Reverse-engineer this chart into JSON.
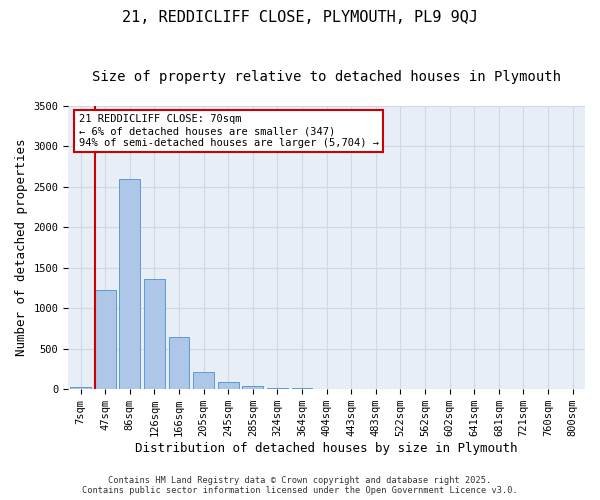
{
  "title1": "21, REDDICLIFF CLOSE, PLYMOUTH, PL9 9QJ",
  "title2": "Size of property relative to detached houses in Plymouth",
  "xlabel": "Distribution of detached houses by size in Plymouth",
  "ylabel": "Number of detached properties",
  "categories": [
    "7sqm",
    "47sqm",
    "86sqm",
    "126sqm",
    "166sqm",
    "205sqm",
    "245sqm",
    "285sqm",
    "324sqm",
    "364sqm",
    "404sqm",
    "443sqm",
    "483sqm",
    "522sqm",
    "562sqm",
    "602sqm",
    "641sqm",
    "681sqm",
    "721sqm",
    "760sqm",
    "800sqm"
  ],
  "bar_heights": [
    30,
    1230,
    2600,
    1360,
    640,
    210,
    90,
    45,
    20,
    10,
    5,
    0,
    0,
    0,
    0,
    0,
    0,
    0,
    0,
    0,
    0
  ],
  "bar_color": "#aec6e8",
  "bar_edgecolor": "#5b9bd5",
  "grid_color": "#d0d8e8",
  "background_color": "#e8eef5",
  "vline_color": "#cc0000",
  "annotation_text": "21 REDDICLIFF CLOSE: 70sqm\n← 6% of detached houses are smaller (347)\n94% of semi-detached houses are larger (5,704) →",
  "annotation_box_color": "#cc0000",
  "ylim": [
    0,
    3500
  ],
  "yticks": [
    0,
    500,
    1000,
    1500,
    2000,
    2500,
    3000,
    3500
  ],
  "footnote1": "Contains HM Land Registry data © Crown copyright and database right 2025.",
  "footnote2": "Contains public sector information licensed under the Open Government Licence v3.0.",
  "title1_fontsize": 11,
  "title2_fontsize": 10,
  "tick_fontsize": 7.5,
  "label_fontsize": 9,
  "annot_fontsize": 7.5
}
